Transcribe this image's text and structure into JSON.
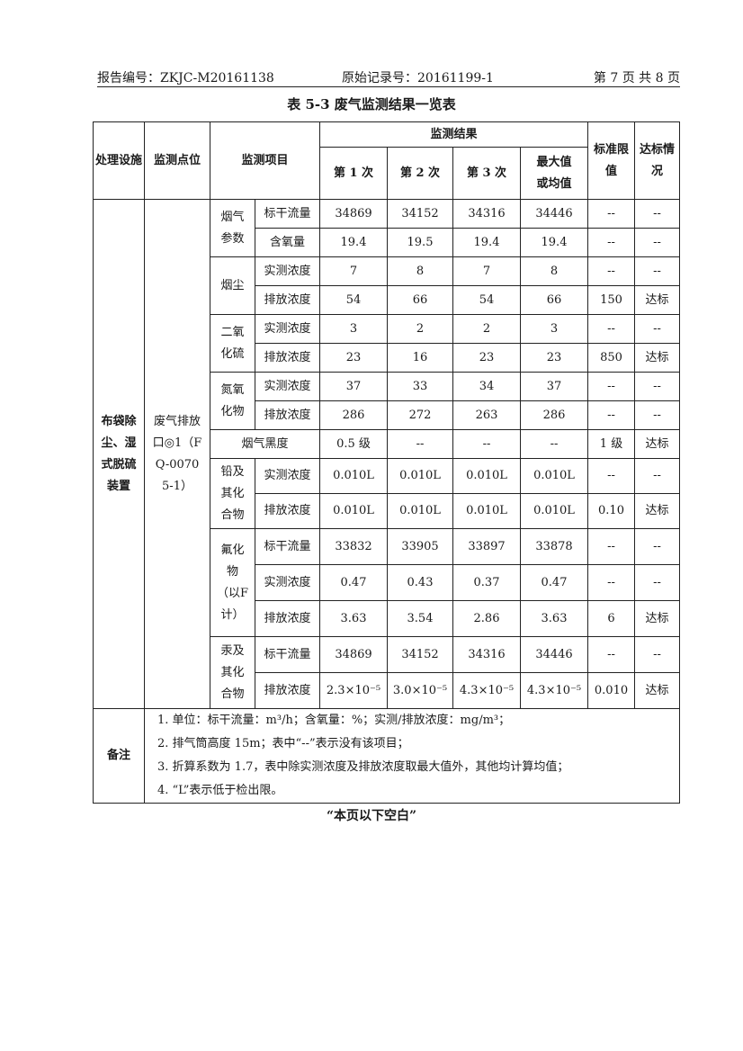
{
  "header": {
    "report_no": "报告编号：ZKJC-M20161138",
    "record_no": "原始记录号：20161199-1",
    "page": "第 7 页 共 8 页"
  },
  "title": "表 5-3   废气监测结果一览表",
  "columns": {
    "facility": "处理设施",
    "point": "监测点位",
    "item": "监测项目",
    "results": "监测结果",
    "run1": "第 1 次",
    "run2": "第 2 次",
    "run3": "第 3 次",
    "max_avg": "最大值或均值",
    "limit": "标准限值",
    "status": "达标情况"
  },
  "facility": "布袋除尘、湿式脱硫装置",
  "point": "废气排放口◎1（FQ-00705-1）",
  "groups": [
    {
      "name": "烟气参数",
      "rows": [
        {
          "item": "标干流量",
          "values": [
            "34869",
            "34152",
            "34316",
            "34446"
          ],
          "limit": "--",
          "status": "--"
        },
        {
          "item": "含氧量",
          "values": [
            "19.4",
            "19.5",
            "19.4",
            "19.4"
          ],
          "limit": "--",
          "status": "--"
        }
      ]
    },
    {
      "name": "烟尘",
      "rows": [
        {
          "item": "实测浓度",
          "values": [
            "7",
            "8",
            "7",
            "8"
          ],
          "limit": "--",
          "status": "--"
        },
        {
          "item": "排放浓度",
          "values": [
            "54",
            "66",
            "54",
            "66"
          ],
          "limit": "150",
          "status": "达标"
        }
      ]
    },
    {
      "name": "二氧化硫",
      "rows": [
        {
          "item": "实测浓度",
          "values": [
            "3",
            "2",
            "2",
            "3"
          ],
          "limit": "--",
          "status": "--"
        },
        {
          "item": "排放浓度",
          "values": [
            "23",
            "16",
            "23",
            "23"
          ],
          "limit": "850",
          "status": "达标"
        }
      ]
    },
    {
      "name": "氮氧化物",
      "rows": [
        {
          "item": "实测浓度",
          "values": [
            "37",
            "33",
            "34",
            "37"
          ],
          "limit": "--",
          "status": "--"
        },
        {
          "item": "排放浓度",
          "values": [
            "286",
            "272",
            "263",
            "286"
          ],
          "limit": "--",
          "status": "--"
        }
      ]
    },
    {
      "name": "烟气黑度",
      "single": true,
      "rows": [
        {
          "item": "",
          "values": [
            "0.5 级",
            "--",
            "--",
            "--"
          ],
          "limit": "1 级",
          "status": "达标"
        }
      ]
    },
    {
      "name": "铅及其化合物",
      "rows": [
        {
          "item": "实测浓度",
          "values": [
            "0.010L",
            "0.010L",
            "0.010L",
            "0.010L"
          ],
          "limit": "--",
          "status": "--"
        },
        {
          "item": "排放浓度",
          "values": [
            "0.010L",
            "0.010L",
            "0.010L",
            "0.010L"
          ],
          "limit": "0.10",
          "status": "达标"
        }
      ]
    },
    {
      "name": "氟化物（以F计）",
      "rows": [
        {
          "item": "标干流量",
          "values": [
            "33832",
            "33905",
            "33897",
            "33878"
          ],
          "limit": "--",
          "status": "--"
        },
        {
          "item": "实测浓度",
          "values": [
            "0.47",
            "0.43",
            "0.37",
            "0.47"
          ],
          "limit": "--",
          "status": "--"
        },
        {
          "item": "排放浓度",
          "values": [
            "3.63",
            "3.54",
            "2.86",
            "3.63"
          ],
          "limit": "6",
          "status": "达标"
        }
      ]
    },
    {
      "name": "汞及其化合物",
      "rows": [
        {
          "item": "标干流量",
          "values": [
            "34869",
            "34152",
            "34316",
            "34446"
          ],
          "limit": "--",
          "status": "--"
        },
        {
          "item": "排放浓度",
          "values": [
            "2.3×10⁻⁵",
            "3.0×10⁻⁵",
            "4.3×10⁻⁵",
            "4.3×10⁻⁵"
          ],
          "limit": "0.010",
          "status": "达标"
        }
      ]
    }
  ],
  "notes": {
    "label": "备注",
    "items": [
      "1.   单位：标干流量：m³/h；含氧量：%；实测/排放浓度：mg/m³；",
      "2.   排气筒高度 15m；表中“--”表示没有该项目；",
      "3.   折算系数为 1.7，表中除实测浓度及排放浓度取最大值外，其他均计算均值；",
      "4.   “L”表示低于检出限。"
    ]
  },
  "footer": "“本页以下空白”"
}
